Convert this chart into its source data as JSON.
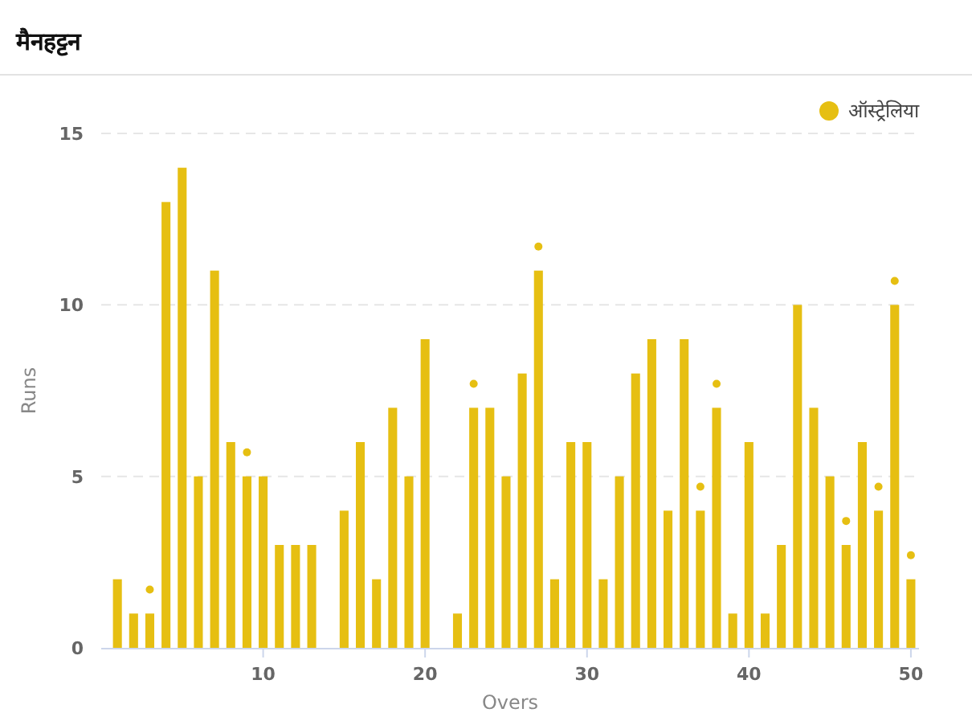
{
  "chart_data": {
    "type": "bar",
    "title": "मैनहट्टन",
    "xlabel": "Overs",
    "ylabel": "Runs",
    "x": [
      1,
      2,
      3,
      4,
      5,
      6,
      7,
      8,
      9,
      10,
      11,
      12,
      13,
      14,
      15,
      16,
      17,
      18,
      19,
      20,
      21,
      22,
      23,
      24,
      25,
      26,
      27,
      28,
      29,
      30,
      31,
      32,
      33,
      34,
      35,
      36,
      37,
      38,
      39,
      40,
      41,
      42,
      43,
      44,
      45,
      46,
      47,
      48,
      49,
      50
    ],
    "series": [
      {
        "name": "ऑस्ट्रेलिया",
        "color": "#e6bf12",
        "values": [
          2,
          1,
          1,
          13,
          14,
          5,
          11,
          6,
          5,
          5,
          3,
          3,
          3,
          0,
          4,
          6,
          2,
          7,
          5,
          9,
          0,
          1,
          7,
          7,
          5,
          8,
          11,
          2,
          6,
          6,
          2,
          5,
          8,
          9,
          4,
          9,
          4,
          7,
          1,
          6,
          1,
          3,
          10,
          7,
          5,
          3,
          6,
          4,
          10,
          2
        ]
      },
      {
        "type": "scatter",
        "color": "#e6bf12",
        "x": [
          3,
          9,
          23,
          27,
          37,
          38,
          46,
          48,
          49,
          50
        ],
        "values": [
          1.7,
          5.7,
          7.7,
          11.7,
          4.7,
          7.7,
          3.7,
          4.7,
          10.7,
          2.7
        ]
      }
    ],
    "xlim": [
      0,
      50.5
    ],
    "ylim": [
      0,
      15
    ],
    "xticks": [
      10,
      20,
      30,
      40,
      50
    ],
    "yticks": [
      0,
      5,
      10,
      15
    ],
    "grid": "y",
    "legend": "top right",
    "marker": "circle"
  }
}
